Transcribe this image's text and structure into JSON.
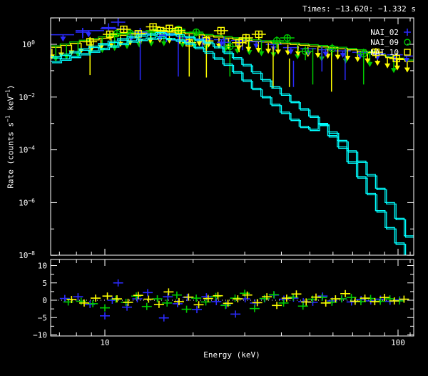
{
  "title": "Times: −13.620: −1.332 s",
  "colors": {
    "background": "#000000",
    "axis": "#ffffff",
    "det_blue": "#2b2bff",
    "det_green": "#00cc00",
    "det_yellow": "#ffff00",
    "model_cyan": "#00ffff"
  },
  "chart_data": {
    "type": "scatter",
    "title": "Times: −13.620: −1.332 s",
    "xlabel": "Energy (keV)",
    "ylabel_main_parts": [
      "Rate (counts s",
      "−1",
      " keV",
      "−1",
      ")"
    ],
    "x_scale": "log",
    "x_range_keV": [
      6.5,
      113
    ],
    "main_y_scale": "log",
    "main_y_range": [
      1e-08,
      10
    ],
    "resid_y_range": [
      -10.3,
      11.75
    ],
    "grid": false,
    "legend_position": "top-right-inside",
    "legend": [
      {
        "label": "NAI_02",
        "symbol": "plus",
        "color": "#2b2bff"
      },
      {
        "label": "NAI_09",
        "symbol": "circle",
        "color": "#00cc00"
      },
      {
        "label": "NAI_10",
        "symbol": "square",
        "color": "#ffff00"
      }
    ],
    "x_ticks": {
      "major": [
        10,
        100
      ],
      "major_labels": [
        "10",
        "100"
      ],
      "minor": [
        7,
        8,
        9,
        20,
        30,
        40,
        50,
        60,
        70,
        80,
        90,
        110
      ]
    },
    "main_y_ticks": {
      "major": [
        {
          "exp": 0,
          "base": "10",
          "sup": "0"
        },
        {
          "exp": -2,
          "base": "10",
          "sup": "−2"
        },
        {
          "exp": -4,
          "base": "10",
          "sup": "−4"
        },
        {
          "exp": -6,
          "base": "10",
          "sup": "−6"
        },
        {
          "exp": -8,
          "base": "10",
          "sup": "−8"
        }
      ],
      "minor_exp": [
        1,
        -1,
        -3,
        -5,
        -7
      ]
    },
    "resid_y_ticks": {
      "major": [
        {
          "v": 10,
          "label": "10"
        },
        {
          "v": 5,
          "label": "5"
        },
        {
          "v": 0,
          "label": "0"
        },
        {
          "v": -5,
          "label": "−5"
        },
        {
          "v": -10,
          "label": "−10"
        }
      ],
      "minor": [
        7.5,
        2.5,
        -2.5,
        -7.5
      ]
    },
    "model_curves_logE_logRate": {
      "model1": [
        [
          0.813,
          -0.52
        ],
        [
          0.9,
          -0.26
        ],
        [
          1.0,
          0.05
        ],
        [
          1.1,
          0.32
        ],
        [
          1.19,
          0.45
        ],
        [
          1.28,
          0.33
        ],
        [
          1.37,
          0.02
        ],
        [
          1.45,
          -0.5
        ],
        [
          1.494,
          -0.85
        ],
        [
          1.55,
          -1.35
        ],
        [
          1.61,
          -1.85
        ],
        [
          1.68,
          -2.45
        ],
        [
          1.744,
          -3.0
        ],
        [
          1.81,
          -3.65
        ],
        [
          1.876,
          -4.45
        ],
        [
          1.93,
          -5.3
        ],
        [
          1.99,
          -6.3
        ],
        [
          2.054,
          -7.6
        ]
      ],
      "model2": [
        [
          0.813,
          -0.62
        ],
        [
          0.9,
          -0.36
        ],
        [
          1.0,
          -0.05
        ],
        [
          1.1,
          0.24
        ],
        [
          1.19,
          0.37
        ],
        [
          1.27,
          0.22
        ],
        [
          1.35,
          -0.18
        ],
        [
          1.43,
          -0.75
        ],
        [
          1.494,
          -1.38
        ],
        [
          1.56,
          -2.0
        ],
        [
          1.615,
          -2.5
        ],
        [
          1.7,
          -3.2
        ],
        [
          1.744,
          -2.95
        ],
        [
          1.81,
          -3.82
        ],
        [
          1.883,
          -5.09
        ],
        [
          1.964,
          -6.72
        ],
        [
          2.03,
          -7.9
        ],
        [
          2.054,
          -8.35
        ]
      ]
    },
    "envelope_logE_logRate": [
      [
        0.813,
        -0.13
      ],
      [
        0.9,
        0.07
      ],
      [
        1.0,
        0.27
      ],
      [
        1.1,
        0.44
      ],
      [
        1.18,
        0.52
      ],
      [
        1.26,
        0.46
      ],
      [
        1.34,
        0.36
      ],
      [
        1.42,
        0.26
      ],
      [
        1.5,
        0.16
      ],
      [
        1.58,
        0.08
      ],
      [
        1.66,
        0.01
      ],
      [
        1.74,
        -0.07
      ],
      [
        1.82,
        -0.15
      ],
      [
        1.9,
        -0.27
      ],
      [
        1.98,
        -0.5
      ],
      [
        2.054,
        -0.66
      ]
    ],
    "blue_caps_E1_E2_Rate": [
      [
        6.5,
        7.9,
        2.3
      ],
      [
        7.9,
        10.0,
        3.3
      ],
      [
        9.6,
        11.8,
        3.9
      ],
      [
        12.0,
        17.8,
        2.4
      ],
      [
        17.8,
        20.4,
        1.75
      ],
      [
        20.4,
        23.4,
        1.6
      ],
      [
        23.4,
        26.8,
        1.5
      ],
      [
        26.8,
        30.7,
        1.4
      ],
      [
        30.7,
        35.2,
        1.25
      ],
      [
        35.2,
        40.3,
        1.0
      ],
      [
        40.3,
        46.2,
        0.75
      ],
      [
        46.2,
        52.9,
        0.68
      ],
      [
        52.9,
        60.6,
        0.62
      ],
      [
        60.6,
        69.4,
        0.56
      ],
      [
        69.4,
        79.5,
        0.5
      ],
      [
        79.5,
        91.1,
        0.45
      ],
      [
        91.1,
        104.4,
        0.4
      ],
      [
        104.4,
        113.0,
        0.36
      ]
    ],
    "upper_limit_arrows": {
      "yellow_E": [
        6.6,
        7.1,
        7.7,
        8.3,
        9.0,
        9.7,
        10.5,
        11.3,
        12.2,
        13.2,
        14.3,
        15.4,
        16.6,
        18.0,
        19.4,
        21.0,
        22.6,
        24.5,
        26.4,
        28.6,
        30.9,
        33.4,
        36.1,
        39.0,
        42.1,
        45.6,
        49.3,
        53.3,
        57.6,
        62.3,
        67.3,
        72.8,
        78.7,
        85.1,
        92.0,
        99.4,
        107.5
      ],
      "yellow_len_dex": 0.46,
      "green_E": [
        6.8,
        7.4,
        8.1,
        8.9,
        9.8,
        10.8,
        11.9,
        13.1,
        14.4,
        15.9,
        18.4,
        20.2,
        22.2,
        25.7,
        28.3,
        31.1,
        34.2,
        37.6,
        45.4,
        54.9,
        66.3,
        80.1,
        96.7
      ],
      "green_len_dex": 0.58,
      "blue_E": [
        7.2,
        8.8,
        12.3,
        15.4,
        19.0,
        21.8,
        25.0,
        28.6,
        32.8,
        37.6,
        43.1,
        49.4,
        56.6,
        64.8,
        74.3,
        85.1,
        97.5,
        107.0
      ],
      "blue_len_dex": 0.26
    },
    "long_error_tails": [
      [
        "blue",
        44.0,
        0.24,
        0.024
      ],
      [
        "blue",
        55.0,
        0.83,
        0.093
      ],
      [
        "blue",
        66.0,
        0.69,
        0.044
      ],
      [
        "yellow",
        37.5,
        0.83,
        0.022
      ],
      [
        "yellow",
        42.6,
        0.29,
        0.024
      ],
      [
        "yellow",
        59.3,
        0.61,
        0.016
      ],
      [
        "green",
        51.2,
        0.73,
        0.03
      ],
      [
        "green",
        76.3,
        0.37,
        0.03
      ]
    ],
    "points_E_R_Rlo_Rhi": {
      "blue": [
        [
          8.4,
          2.9,
          1.7,
          4.1
        ],
        [
          10.3,
          4.3,
          3.0,
          5.6
        ],
        [
          11.1,
          6.9,
          5.2,
          8.6
        ],
        [
          13.2,
          2.9,
          0.044,
          4.1
        ],
        [
          16.2,
          2.2,
          1.2,
          3.2
        ],
        [
          17.8,
          1.45,
          0.06,
          2.3
        ],
        [
          21.5,
          1.5,
          0.8,
          2.2
        ],
        [
          25.5,
          1.2,
          0.5,
          1.9
        ],
        [
          29.5,
          1.3,
          0.6,
          2.0
        ]
      ],
      "green": [
        [
          11.0,
          2.6,
          1.8,
          3.4
        ],
        [
          12.2,
          2.6,
          1.8,
          3.4
        ],
        [
          14.8,
          2.9,
          2.0,
          3.8
        ],
        [
          17.8,
          3.7,
          2.7,
          4.7
        ],
        [
          20.5,
          2.9,
          2.0,
          3.8
        ],
        [
          26.7,
          0.83,
          0.06,
          1.4
        ],
        [
          38.6,
          1.37,
          0.7,
          2.0
        ],
        [
          41.9,
          1.75,
          1.1,
          2.4
        ],
        [
          48.3,
          0.54,
          0.25,
          0.85
        ],
        [
          59.6,
          0.69,
          0.35,
          1.05
        ],
        [
          76.3,
          0.44,
          0.2,
          0.68
        ]
      ],
      "yellow": [
        [
          8.9,
          1.25,
          0.068,
          1.9
        ],
        [
          10.4,
          2.4,
          1.5,
          3.3
        ],
        [
          11.6,
          3.7,
          2.6,
          4.8
        ],
        [
          13.0,
          2.5,
          1.6,
          3.4
        ],
        [
          14.6,
          4.6,
          3.5,
          5.7
        ],
        [
          15.5,
          3.3,
          2.3,
          4.3
        ],
        [
          16.6,
          4.0,
          3.0,
          5.0
        ],
        [
          17.8,
          3.3,
          2.3,
          4.3
        ],
        [
          19.4,
          1.15,
          0.06,
          1.9
        ],
        [
          22.2,
          1.35,
          0.055,
          2.1
        ],
        [
          24.9,
          3.3,
          2.2,
          4.4
        ],
        [
          28.7,
          1.15,
          0.5,
          1.8
        ],
        [
          30.3,
          1.75,
          1.0,
          2.5
        ],
        [
          33.5,
          2.4,
          1.5,
          3.3
        ],
        [
          84.0,
          0.5,
          0.3,
          0.72
        ],
        [
          98.7,
          0.29,
          0.12,
          0.47
        ]
      ]
    },
    "residuals_sigma": {
      "blue": [
        [
          7.3,
          0.5
        ],
        [
          8.1,
          1.0
        ],
        [
          8.9,
          -1.2
        ],
        [
          10.0,
          -4.5
        ],
        [
          10.6,
          0.0
        ],
        [
          11.1,
          5.0
        ],
        [
          11.9,
          -2.0
        ],
        [
          12.9,
          0.4
        ],
        [
          14.0,
          2.2
        ],
        [
          15.9,
          -5.1
        ],
        [
          16.4,
          1.0
        ],
        [
          17.7,
          -1.0
        ],
        [
          19.1,
          0.8
        ],
        [
          20.6,
          -2.7
        ],
        [
          22.2,
          1.0
        ],
        [
          24.0,
          -0.4
        ],
        [
          25.9,
          -1.4
        ],
        [
          27.9,
          -4.0
        ],
        [
          30.1,
          0.4
        ],
        [
          32.5,
          -0.8
        ],
        [
          35.1,
          0.4
        ],
        [
          37.8,
          1.5
        ],
        [
          40.8,
          0.3
        ],
        [
          44.0,
          0.6
        ],
        [
          47.5,
          -0.4
        ],
        [
          51.2,
          -0.6
        ],
        [
          55.3,
          1.2
        ],
        [
          59.6,
          -0.2
        ],
        [
          64.3,
          0.4
        ],
        [
          69.4,
          -0.5
        ],
        [
          74.8,
          0.2
        ],
        [
          80.7,
          -0.2
        ],
        [
          87.1,
          0.3
        ],
        [
          93.9,
          -0.3
        ],
        [
          101.3,
          0.1
        ]
      ],
      "green": [
        [
          7.5,
          -0.5
        ],
        [
          8.3,
          -0.3
        ],
        [
          9.1,
          -1.0
        ],
        [
          10.0,
          -2.2
        ],
        [
          10.9,
          0.3
        ],
        [
          11.8,
          -0.6
        ],
        [
          12.8,
          1.2
        ],
        [
          13.9,
          -1.8
        ],
        [
          15.1,
          0.4
        ],
        [
          16.3,
          -0.8
        ],
        [
          17.6,
          1.5
        ],
        [
          19.0,
          -2.6
        ],
        [
          20.5,
          0.6
        ],
        [
          22.1,
          -0.5
        ],
        [
          23.9,
          1.1
        ],
        [
          25.8,
          -1.5
        ],
        [
          27.8,
          0.6
        ],
        [
          30.0,
          2.0
        ],
        [
          32.4,
          -2.4
        ],
        [
          35.0,
          0.5
        ],
        [
          37.7,
          1.6
        ],
        [
          40.7,
          -0.8
        ],
        [
          43.9,
          0.9
        ],
        [
          47.4,
          -1.7
        ],
        [
          51.1,
          0.3
        ],
        [
          55.1,
          0.8
        ],
        [
          59.5,
          -0.6
        ],
        [
          64.2,
          0.4
        ],
        [
          69.3,
          0.8
        ],
        [
          74.7,
          -0.4
        ],
        [
          80.6,
          0.5
        ],
        [
          87.0,
          -0.3
        ],
        [
          93.8,
          0.4
        ],
        [
          101.2,
          -0.2
        ]
      ],
      "yellow": [
        [
          7.7,
          0.2
        ],
        [
          8.5,
          -0.8
        ],
        [
          9.3,
          0.6
        ],
        [
          10.2,
          1.2
        ],
        [
          11.0,
          0.4
        ],
        [
          12.0,
          -0.6
        ],
        [
          13.0,
          1.4
        ],
        [
          14.1,
          0.3
        ],
        [
          15.3,
          -1.2
        ],
        [
          16.5,
          2.4
        ],
        [
          17.9,
          -0.4
        ],
        [
          19.3,
          0.9
        ],
        [
          20.9,
          -1.3
        ],
        [
          22.5,
          0.5
        ],
        [
          24.3,
          1.3
        ],
        [
          26.3,
          -0.9
        ],
        [
          28.4,
          0.4
        ],
        [
          30.6,
          1.5
        ],
        [
          33.1,
          -0.7
        ],
        [
          35.7,
          1.0
        ],
        [
          38.6,
          -1.5
        ],
        [
          41.7,
          0.6
        ],
        [
          45.0,
          1.8
        ],
        [
          48.6,
          -0.5
        ],
        [
          52.5,
          0.9
        ],
        [
          56.7,
          -0.8
        ],
        [
          61.2,
          0.4
        ],
        [
          66.1,
          1.9
        ],
        [
          71.4,
          -0.3
        ],
        [
          77.1,
          0.6
        ],
        [
          83.3,
          -0.4
        ],
        [
          89.9,
          0.8
        ],
        [
          97.1,
          -0.2
        ],
        [
          104.8,
          0.3
        ]
      ]
    }
  }
}
